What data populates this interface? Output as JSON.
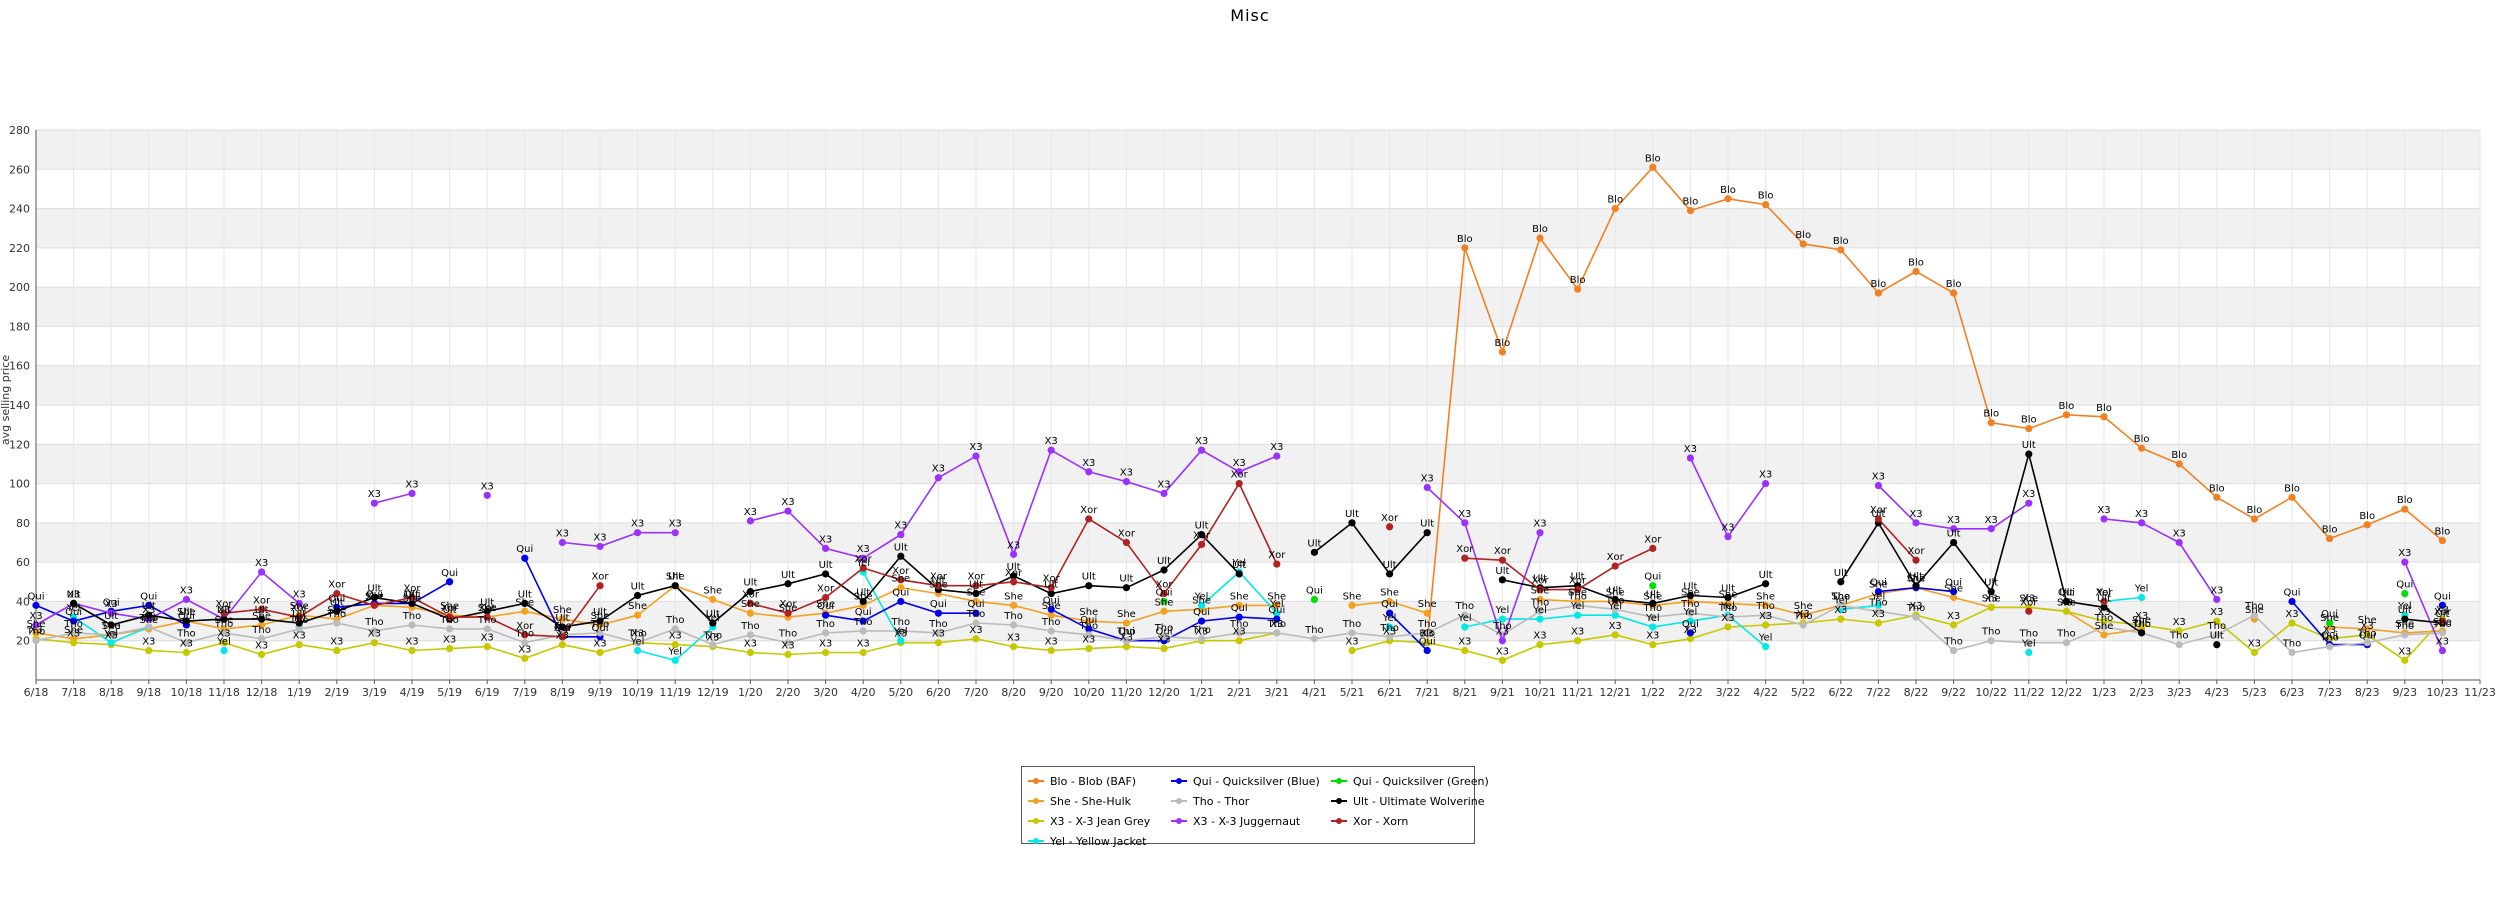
{
  "page": {
    "title": "Misc"
  },
  "chart_data": {
    "type": "line",
    "title": "Misc",
    "xlabel": "",
    "ylabel": "avg selling price",
    "ylim": [
      0,
      280
    ],
    "yticks": [
      20,
      40,
      60,
      80,
      100,
      120,
      140,
      160,
      180,
      200,
      220,
      240,
      260,
      280
    ],
    "grid": true,
    "legend_position": "bottom-center",
    "x": [
      "6/18",
      "7/18",
      "8/18",
      "9/18",
      "10/18",
      "11/18",
      "12/18",
      "1/19",
      "2/19",
      "3/19",
      "4/19",
      "5/19",
      "6/19",
      "7/19",
      "8/19",
      "9/19",
      "10/19",
      "11/19",
      "12/19",
      "1/20",
      "2/20",
      "3/20",
      "4/20",
      "5/20",
      "6/20",
      "7/20",
      "8/20",
      "9/20",
      "10/20",
      "11/20",
      "12/20",
      "1/21",
      "2/21",
      "3/21",
      "4/21",
      "5/21",
      "6/21",
      "7/21",
      "8/21",
      "9/21",
      "10/21",
      "11/21",
      "12/21",
      "1/22",
      "2/22",
      "3/22",
      "4/22",
      "5/22",
      "6/22",
      "7/22",
      "8/22",
      "9/22",
      "10/22",
      "11/22",
      "12/22",
      "1/23",
      "2/23",
      "3/23",
      "4/23",
      "5/23",
      "6/23",
      "7/23",
      "8/23",
      "9/23",
      "10/23",
      "11/23"
    ],
    "series": [
      {
        "code": "Blo",
        "name": "Blo - Blob (BAF)",
        "color": "#f28022",
        "values": [
          null,
          null,
          null,
          null,
          null,
          null,
          null,
          null,
          null,
          null,
          null,
          null,
          null,
          null,
          null,
          null,
          null,
          null,
          null,
          null,
          null,
          null,
          null,
          null,
          null,
          null,
          null,
          null,
          null,
          null,
          null,
          null,
          null,
          null,
          null,
          null,
          null,
          19,
          220,
          167,
          225,
          199,
          240,
          261,
          239,
          245,
          242,
          222,
          219,
          197,
          208,
          197,
          131,
          128,
          135,
          134,
          118,
          110,
          93,
          82,
          93,
          72,
          79,
          87,
          71,
          null
        ]
      },
      {
        "code": "She",
        "name": "She - She-Hulk",
        "color": "#f4a020",
        "values": [
          24,
          21,
          23,
          26,
          30,
          26,
          28,
          33,
          31,
          38,
          37,
          33,
          32,
          35,
          31,
          28,
          33,
          48,
          41,
          34,
          32,
          34,
          38,
          47,
          44,
          40,
          38,
          33,
          30,
          29,
          35,
          36,
          38,
          38,
          null,
          38,
          40,
          34,
          null,
          null,
          41,
          40,
          40,
          38,
          40,
          39,
          38,
          33,
          38,
          44,
          47,
          42,
          37,
          37,
          35,
          23,
          26,
          null,
          null,
          31,
          null,
          27,
          26,
          24,
          25,
          null
        ]
      },
      {
        "code": "X3",
        "name": "X3 - X-3 Jean Grey",
        "color": "#c8c800",
        "values": [
          21,
          19,
          18,
          15,
          14,
          19,
          13,
          18,
          15,
          19,
          15,
          16,
          17,
          11,
          18,
          14,
          19,
          18,
          17,
          14,
          13,
          14,
          14,
          19,
          19,
          21,
          17,
          15,
          16,
          17,
          16,
          20,
          20,
          24,
          null,
          15,
          20,
          19,
          15,
          10,
          18,
          20,
          23,
          18,
          21,
          27,
          28,
          29,
          31,
          29,
          33,
          28,
          37,
          37,
          35,
          30,
          28,
          25,
          30,
          14,
          29,
          21,
          23,
          10,
          31,
          null
        ]
      },
      {
        "code": "Yel",
        "name": "Yel - Yellow Jacket",
        "color": "#00e8e8",
        "values": [
          null,
          32,
          19,
          27,
          null,
          15,
          null,
          27,
          null,
          null,
          null,
          null,
          null,
          null,
          null,
          null,
          15,
          10,
          27,
          null,
          null,
          null,
          55,
          20,
          null,
          null,
          null,
          null,
          null,
          null,
          null,
          38,
          55,
          34,
          null,
          null,
          27,
          null,
          27,
          31,
          31,
          33,
          33,
          27,
          30,
          33,
          17,
          null,
          36,
          38,
          null,
          null,
          null,
          14,
          null,
          40,
          42,
          null,
          null,
          null,
          null,
          null,
          null,
          33,
          null,
          null
        ]
      },
      {
        "code": "Qui",
        "name": "Qui - Quicksilver (Blue)",
        "color": "#0000ee",
        "values": [
          38,
          30,
          35,
          38,
          28,
          null,
          null,
          null,
          37,
          39,
          39,
          50,
          null,
          62,
          22,
          22,
          null,
          null,
          null,
          null,
          null,
          33,
          30,
          40,
          34,
          34,
          null,
          36,
          26,
          20,
          20,
          30,
          32,
          31,
          null,
          null,
          34,
          15,
          null,
          null,
          null,
          null,
          null,
          null,
          24,
          null,
          null,
          null,
          null,
          45,
          47,
          45,
          null,
          null,
          null,
          null,
          null,
          null,
          null,
          null,
          40,
          18,
          18,
          null,
          38,
          null
        ]
      },
      {
        "code": "Tho",
        "name": "Tho - Thor",
        "color": "#bbbbbb",
        "values": [
          20,
          24,
          23,
          27,
          19,
          24,
          21,
          26,
          29,
          25,
          28,
          26,
          26,
          19,
          23,
          24,
          19,
          26,
          18,
          23,
          19,
          24,
          25,
          25,
          24,
          29,
          28,
          25,
          23,
          20,
          22,
          21,
          24,
          24,
          21,
          24,
          22,
          24,
          33,
          23,
          35,
          38,
          36,
          32,
          34,
          32,
          33,
          28,
          38,
          35,
          32,
          15,
          20,
          19,
          19,
          27,
          24,
          18,
          23,
          33,
          14,
          17,
          19,
          23,
          24,
          null
        ]
      },
      {
        "code": "Qgr",
        "name": "Qui - Quicksilver (Green)",
        "color": "#00dd00",
        "values": [
          null,
          null,
          null,
          null,
          null,
          null,
          null,
          null,
          null,
          null,
          null,
          null,
          null,
          null,
          null,
          null,
          null,
          null,
          null,
          null,
          null,
          null,
          null,
          null,
          null,
          null,
          null,
          null,
          null,
          null,
          40,
          null,
          null,
          null,
          41,
          null,
          null,
          null,
          null,
          null,
          null,
          null,
          null,
          48,
          null,
          null,
          null,
          null,
          null,
          null,
          null,
          null,
          null,
          null,
          40,
          null,
          null,
          null,
          null,
          null,
          null,
          29,
          null,
          44,
          null,
          null
        ]
      },
      {
        "code": "X3j",
        "name": "X3 - X-3 Juggernaut",
        "color": "#9b30ff",
        "values": [
          28,
          39,
          34,
          31,
          41,
          31,
          55,
          39,
          null,
          90,
          95,
          null,
          94,
          null,
          70,
          68,
          75,
          75,
          null,
          81,
          86,
          67,
          62,
          74,
          103,
          114,
          64,
          117,
          106,
          101,
          95,
          117,
          106,
          114,
          null,
          null,
          null,
          98,
          80,
          20,
          75,
          null,
          null,
          null,
          113,
          73,
          100,
          null,
          null,
          99,
          80,
          77,
          77,
          90,
          null,
          82,
          80,
          70,
          41,
          null,
          null,
          null,
          null,
          60,
          15,
          null
        ]
      },
      {
        "code": "Ult",
        "name": "Ult - Ultimate Wolverine",
        "color": "#000000",
        "values": [
          null,
          39,
          28,
          33,
          30,
          31,
          31,
          29,
          35,
          42,
          39,
          31,
          35,
          39,
          27,
          30,
          43,
          48,
          29,
          45,
          49,
          54,
          40,
          63,
          46,
          44,
          53,
          44,
          48,
          47,
          56,
          74,
          54,
          null,
          65,
          80,
          54,
          75,
          null,
          51,
          47,
          48,
          41,
          39,
          43,
          42,
          49,
          null,
          50,
          80,
          48,
          70,
          45,
          115,
          40,
          37,
          24,
          null,
          18,
          null,
          null,
          null,
          null,
          31,
          29,
          null
        ]
      },
      {
        "code": "Xor",
        "name": "Xor - Xorn",
        "color": "#b22222",
        "values": [
          null,
          null,
          null,
          null,
          null,
          34,
          36,
          32,
          44,
          38,
          42,
          32,
          32,
          23,
          22,
          48,
          null,
          null,
          null,
          39,
          34,
          42,
          57,
          51,
          48,
          48,
          50,
          47,
          82,
          70,
          44,
          69,
          100,
          59,
          null,
          null,
          78,
          null,
          62,
          61,
          46,
          46,
          58,
          67,
          null,
          null,
          null,
          null,
          null,
          82,
          61,
          null,
          null,
          35,
          null,
          40,
          null,
          null,
          null,
          null,
          null,
          null,
          null,
          null,
          30,
          null
        ]
      }
    ]
  }
}
